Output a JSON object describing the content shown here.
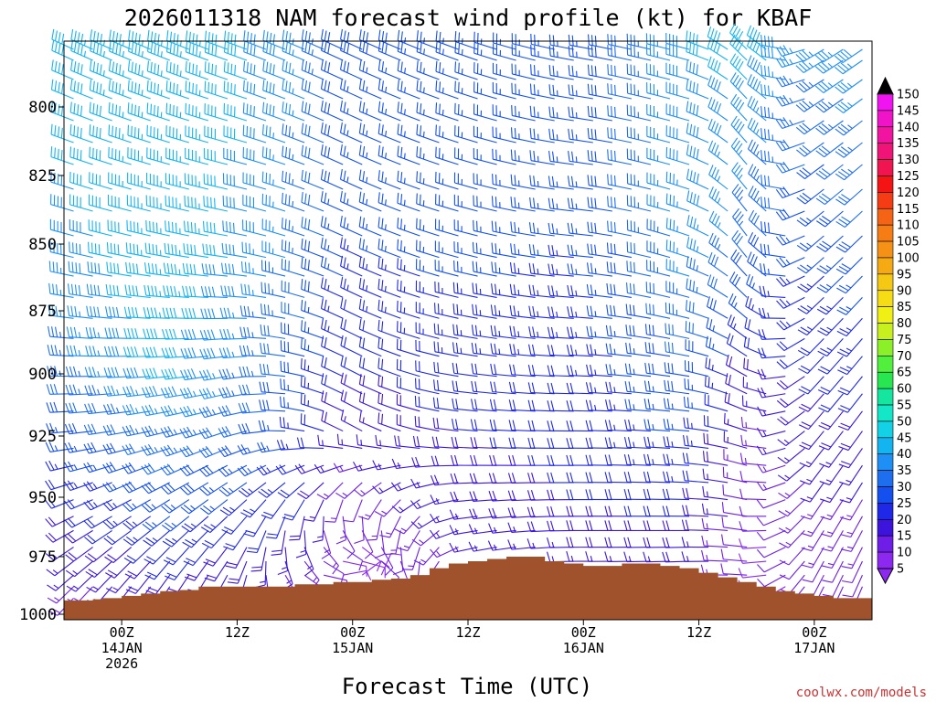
{
  "chart_data": {
    "type": "wind-profile",
    "title": "2026011318 NAM forecast wind profile (kt) for KBAF",
    "xlabel": "Forecast Time (UTC)",
    "ylabel": "",
    "y_ticks": [
      "800",
      "825",
      "850",
      "875",
      "900",
      "925",
      "950",
      "975",
      "1000"
    ],
    "y_tick_values": [
      800,
      825,
      850,
      875,
      900,
      925,
      950,
      975,
      1000
    ],
    "ylim_hpa": [
      776,
      1002
    ],
    "xlim_hours": [
      -6,
      78
    ],
    "x_ticks": [
      {
        "hour": 0,
        "lines": [
          "00Z",
          "14JAN",
          "2026"
        ]
      },
      {
        "hour": 12,
        "lines": [
          "12Z"
        ]
      },
      {
        "hour": 24,
        "lines": [
          "00Z",
          "15JAN"
        ]
      },
      {
        "hour": 36,
        "lines": [
          "12Z"
        ]
      },
      {
        "hour": 48,
        "lines": [
          "00Z",
          "16JAN"
        ]
      },
      {
        "hour": 60,
        "lines": [
          "12Z"
        ]
      },
      {
        "hour": 72,
        "lines": [
          "00Z",
          "17JAN"
        ]
      }
    ],
    "colorbar": {
      "unit": "kt",
      "levels": [
        5,
        10,
        15,
        20,
        25,
        30,
        35,
        40,
        45,
        50,
        55,
        60,
        65,
        70,
        75,
        80,
        85,
        90,
        95,
        100,
        105,
        110,
        115,
        120,
        125,
        130,
        135,
        140,
        145,
        150
      ],
      "colors": [
        "#8c28f0",
        "#6e1ee6",
        "#3c14dc",
        "#1e28e6",
        "#1450f0",
        "#1e6ef0",
        "#1e90f5",
        "#14b4f0",
        "#14d2e6",
        "#14e6c8",
        "#14e6a0",
        "#28e650",
        "#50f03c",
        "#8cf028",
        "#c8f01e",
        "#f0f014",
        "#f5dc14",
        "#f5c814",
        "#f5aa14",
        "#f59114",
        "#f57d14",
        "#f56414",
        "#f53c14",
        "#f51414",
        "#f01450",
        "#f01478",
        "#f014a0",
        "#f014c8",
        "#f014f0"
      ],
      "over_arrow_color": "#000000",
      "under_arrow_color": "#8c28f0"
    },
    "terrain": {
      "color": "#a0522d",
      "surface_pressure_hpa": [
        [
          -6,
          994
        ],
        [
          -4,
          994
        ],
        [
          -3,
          993.5
        ],
        [
          -2,
          993
        ],
        [
          0,
          992
        ],
        [
          2,
          991
        ],
        [
          4,
          990
        ],
        [
          6,
          989.5
        ],
        [
          8,
          988
        ],
        [
          10,
          988
        ],
        [
          12,
          988
        ],
        [
          14,
          988
        ],
        [
          16,
          988
        ],
        [
          18,
          987
        ],
        [
          20,
          987
        ],
        [
          22,
          986
        ],
        [
          24,
          986
        ],
        [
          26,
          985
        ],
        [
          28,
          984.5
        ],
        [
          30,
          983
        ],
        [
          32,
          980
        ],
        [
          34,
          978
        ],
        [
          36,
          977
        ],
        [
          38,
          976
        ],
        [
          40,
          975
        ],
        [
          42,
          975
        ],
        [
          44,
          977
        ],
        [
          46,
          978
        ],
        [
          48,
          979
        ],
        [
          50,
          979
        ],
        [
          52,
          978
        ],
        [
          54,
          978
        ],
        [
          56,
          979
        ],
        [
          58,
          980
        ],
        [
          60,
          982
        ],
        [
          62,
          984
        ],
        [
          64,
          986
        ],
        [
          66,
          988
        ],
        [
          68,
          990
        ],
        [
          70,
          991
        ],
        [
          72,
          992
        ],
        [
          74,
          993
        ],
        [
          76,
          993
        ],
        [
          78,
          994
        ]
      ]
    },
    "wind_field": {
      "time_step_hours": 2,
      "pressure_levels_hpa": [
        779,
        783,
        790,
        797,
        805,
        813,
        821,
        830,
        838,
        847,
        855,
        862,
        870,
        878,
        886,
        893,
        901,
        908,
        915,
        923,
        930,
        937,
        944,
        951,
        958,
        964,
        971,
        977,
        983,
        988,
        993,
        997
      ],
      "direction_keyframes_deg": [
        {
          "hour": -6,
          "by_level": [
            [
              780,
              295
            ],
            [
              850,
              285
            ],
            [
              925,
              265
            ],
            [
              1000,
              220
            ]
          ]
        },
        {
          "hour": 12,
          "by_level": [
            [
              780,
              290
            ],
            [
              850,
              280
            ],
            [
              925,
              250
            ],
            [
              1000,
              195
            ]
          ]
        },
        {
          "hour": 24,
          "by_level": [
            [
              780,
              295
            ],
            [
              850,
              295
            ],
            [
              925,
              300
            ],
            [
              1000,
              0
            ]
          ]
        },
        {
          "hour": 36,
          "by_level": [
            [
              780,
              290
            ],
            [
              850,
              285
            ],
            [
              925,
              275
            ],
            [
              1000,
              245
            ]
          ]
        },
        {
          "hour": 48,
          "by_level": [
            [
              780,
              280
            ],
            [
              850,
              275
            ],
            [
              925,
              270
            ],
            [
              1000,
              270
            ]
          ]
        },
        {
          "hour": 60,
          "by_level": [
            [
              780,
              285
            ],
            [
              850,
              290
            ],
            [
              925,
              275
            ],
            [
              1000,
              265
            ]
          ]
        },
        {
          "hour": 66,
          "by_level": [
            [
              780,
              320
            ],
            [
              850,
              330
            ],
            [
              925,
              290
            ],
            [
              1000,
              270
            ]
          ]
        },
        {
          "hour": 72,
          "by_level": [
            [
              780,
              240
            ],
            [
              850,
              230
            ],
            [
              925,
              220
            ],
            [
              1000,
              205
            ]
          ]
        },
        {
          "hour": 78,
          "by_level": [
            [
              780,
              235
            ],
            [
              850,
              225
            ],
            [
              925,
              215
            ],
            [
              1000,
              200
            ]
          ]
        }
      ],
      "speed_keyframes_kt": [
        {
          "hour": -6,
          "by_level": [
            [
              780,
              42
            ],
            [
              850,
              38
            ],
            [
              900,
              32
            ],
            [
              950,
              20
            ],
            [
              1000,
              12
            ]
          ]
        },
        {
          "hour": 6,
          "by_level": [
            [
              780,
              45
            ],
            [
              850,
              45
            ],
            [
              900,
              42
            ],
            [
              950,
              28
            ],
            [
              1000,
              14
            ]
          ]
        },
        {
          "hour": 18,
          "by_level": [
            [
              780,
              38
            ],
            [
              850,
              35
            ],
            [
              900,
              30
            ],
            [
              950,
              22
            ],
            [
              1000,
              10
            ]
          ]
        },
        {
          "hour": 24,
          "by_level": [
            [
              780,
              28
            ],
            [
              850,
              25
            ],
            [
              900,
              20
            ],
            [
              950,
              12
            ],
            [
              1000,
              6
            ]
          ]
        },
        {
          "hour": 36,
          "by_level": [
            [
              780,
              27
            ],
            [
              850,
              27
            ],
            [
              900,
              22
            ],
            [
              950,
              18
            ],
            [
              1000,
              12
            ]
          ]
        },
        {
          "hour": 48,
          "by_level": [
            [
              780,
              25
            ],
            [
              850,
              25
            ],
            [
              900,
              22
            ],
            [
              950,
              20
            ],
            [
              1000,
              14
            ]
          ]
        },
        {
          "hour": 60,
          "by_level": [
            [
              780,
              40
            ],
            [
              850,
              38
            ],
            [
              900,
              30
            ],
            [
              950,
              22
            ],
            [
              1000,
              14
            ]
          ]
        },
        {
          "hour": 66,
          "by_level": [
            [
              780,
              42
            ],
            [
              850,
              32
            ],
            [
              900,
              18
            ],
            [
              950,
              10
            ],
            [
              1000,
              8
            ]
          ]
        },
        {
          "hour": 72,
          "by_level": [
            [
              780,
              35
            ],
            [
              850,
              25
            ],
            [
              900,
              20
            ],
            [
              950,
              15
            ],
            [
              1000,
              10
            ]
          ]
        },
        {
          "hour": 78,
          "by_level": [
            [
              780,
              38
            ],
            [
              850,
              30
            ],
            [
              900,
              22
            ],
            [
              950,
              15
            ],
            [
              1000,
              10
            ]
          ]
        }
      ]
    }
  },
  "credit": "coolwx.com/models"
}
